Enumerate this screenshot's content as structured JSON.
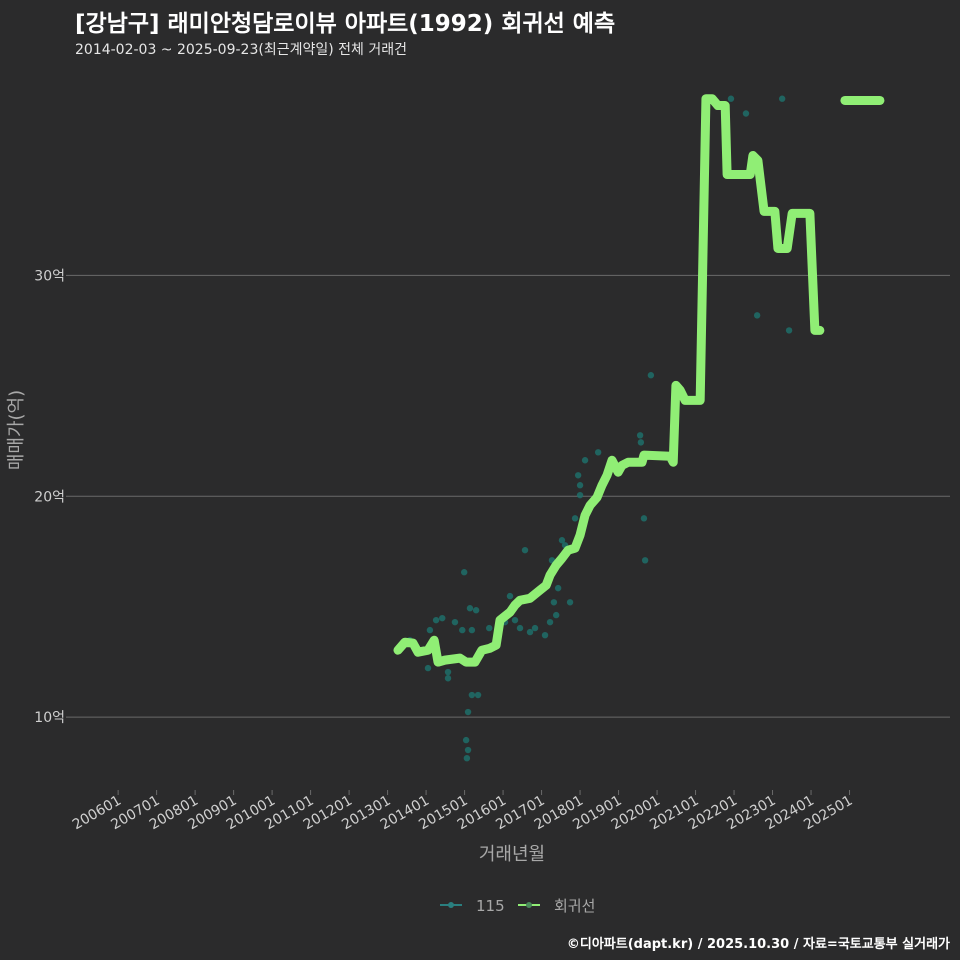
{
  "title": "[강남구] 래미안청담로이뷰 아파트(1992) 회귀선 예측",
  "subtitle": "2014-02-03 ~ 2025-09-23(최근계약일) 전체 거래건",
  "footer": "©디아파트(dapt.kr) / 2025.10.30 / 자료=국토교통부 실거래가",
  "chart_data": {
    "type": "scatter+line",
    "xlabel": "거래년월",
    "ylabel": "매매가(억)",
    "xlim": [
      2004.75,
      2027.61
    ],
    "ylim": [
      6.7,
      39.3
    ],
    "x_ticks": [
      {
        "v": 2006,
        "label": "200601"
      },
      {
        "v": 2007,
        "label": "200701"
      },
      {
        "v": 2008,
        "label": "200801"
      },
      {
        "v": 2009,
        "label": "200901"
      },
      {
        "v": 2010,
        "label": "201001"
      },
      {
        "v": 2011,
        "label": "201101"
      },
      {
        "v": 2012,
        "label": "201201"
      },
      {
        "v": 2013,
        "label": "201301"
      },
      {
        "v": 2014,
        "label": "201401"
      },
      {
        "v": 2015,
        "label": "201501"
      },
      {
        "v": 2016,
        "label": "201601"
      },
      {
        "v": 2017,
        "label": "201701"
      },
      {
        "v": 2018,
        "label": "201801"
      },
      {
        "v": 2019,
        "label": "201901"
      },
      {
        "v": 2020,
        "label": "202001"
      },
      {
        "v": 2021,
        "label": "202101"
      },
      {
        "v": 2022,
        "label": "202201"
      },
      {
        "v": 2023,
        "label": "202301"
      },
      {
        "v": 2024,
        "label": "202401"
      },
      {
        "v": 2025,
        "label": "202501"
      }
    ],
    "y_ticks": [
      {
        "v": 10,
        "label": "10억"
      },
      {
        "v": 20,
        "label": "20억"
      },
      {
        "v": 30,
        "label": "30억"
      }
    ],
    "legend": {
      "position": "bottom",
      "items": [
        {
          "label": "115",
          "color": "#2a7f7f"
        },
        {
          "label": "회귀선",
          "color": "#90ee75"
        }
      ]
    },
    "colors": {
      "scatter": "#1f6f6a",
      "line": "#90ee75",
      "grid": "#6a6a6a",
      "text": "#cfcfcf"
    },
    "scatter": [
      [
        2013.32,
        13.12
      ],
      [
        2013.58,
        13.48
      ],
      [
        2014.05,
        12.22
      ],
      [
        2014.1,
        13.94
      ],
      [
        2014.26,
        14.39
      ],
      [
        2014.42,
        14.48
      ],
      [
        2014.57,
        12.04
      ],
      [
        2014.57,
        11.76
      ],
      [
        2014.75,
        14.3
      ],
      [
        2014.94,
        13.94
      ],
      [
        2014.99,
        16.56
      ],
      [
        2015.04,
        8.96
      ],
      [
        2015.06,
        8.14
      ],
      [
        2015.09,
        8.51
      ],
      [
        2015.09,
        10.23
      ],
      [
        2015.14,
        14.93
      ],
      [
        2015.19,
        13.94
      ],
      [
        2015.19,
        11.0
      ],
      [
        2015.3,
        14.84
      ],
      [
        2015.35,
        11.0
      ],
      [
        2015.64,
        14.03
      ],
      [
        2016.05,
        14.3
      ],
      [
        2016.18,
        15.48
      ],
      [
        2016.31,
        14.39
      ],
      [
        2016.44,
        14.03
      ],
      [
        2016.57,
        17.56
      ],
      [
        2016.7,
        13.85
      ],
      [
        2016.83,
        14.03
      ],
      [
        2016.96,
        15.75
      ],
      [
        2017.09,
        13.71
      ],
      [
        2017.22,
        14.3
      ],
      [
        2017.27,
        17.1
      ],
      [
        2017.32,
        15.2
      ],
      [
        2017.38,
        14.62
      ],
      [
        2017.43,
        15.84
      ],
      [
        2017.53,
        18.01
      ],
      [
        2017.61,
        17.78
      ],
      [
        2017.74,
        15.2
      ],
      [
        2017.87,
        19.0
      ],
      [
        2017.95,
        20.95
      ],
      [
        2018.0,
        20.5
      ],
      [
        2018.0,
        20.05
      ],
      [
        2018.13,
        21.63
      ],
      [
        2018.47,
        21.99
      ],
      [
        2018.83,
        21.27
      ],
      [
        2019.56,
        22.76
      ],
      [
        2019.58,
        22.44
      ],
      [
        2019.66,
        19.0
      ],
      [
        2019.69,
        17.1
      ],
      [
        2019.84,
        25.48
      ],
      [
        2021.92,
        38.0
      ],
      [
        2022.31,
        37.33
      ],
      [
        2022.6,
        28.19
      ],
      [
        2023.25,
        38.0
      ],
      [
        2023.43,
        27.51
      ]
    ],
    "line_segments": [
      [
        [
          2013.27,
          13.03
        ],
        [
          2013.45,
          13.39
        ],
        [
          2013.66,
          13.35
        ],
        [
          2013.79,
          12.94
        ],
        [
          2014.05,
          13.03
        ],
        [
          2014.21,
          13.48
        ],
        [
          2014.31,
          12.49
        ],
        [
          2014.49,
          12.58
        ],
        [
          2014.88,
          12.67
        ],
        [
          2015.04,
          12.49
        ],
        [
          2015.27,
          12.49
        ],
        [
          2015.45,
          13.03
        ],
        [
          2015.66,
          13.12
        ],
        [
          2015.82,
          13.26
        ],
        [
          2015.92,
          14.39
        ],
        [
          2016.18,
          14.75
        ],
        [
          2016.31,
          15.07
        ],
        [
          2016.44,
          15.29
        ],
        [
          2016.7,
          15.38
        ],
        [
          2016.96,
          15.75
        ],
        [
          2017.12,
          15.97
        ],
        [
          2017.22,
          16.43
        ],
        [
          2017.38,
          16.88
        ],
        [
          2017.53,
          17.19
        ],
        [
          2017.69,
          17.56
        ],
        [
          2017.87,
          17.65
        ],
        [
          2018.0,
          18.24
        ],
        [
          2018.13,
          19.14
        ],
        [
          2018.26,
          19.59
        ],
        [
          2018.44,
          19.95
        ],
        [
          2018.57,
          20.5
        ],
        [
          2018.7,
          20.95
        ],
        [
          2018.83,
          21.63
        ],
        [
          2018.99,
          21.09
        ],
        [
          2019.09,
          21.4
        ],
        [
          2019.25,
          21.54
        ],
        [
          2019.61,
          21.54
        ],
        [
          2019.66,
          21.86
        ],
        [
          2020.34,
          21.81
        ],
        [
          2020.42,
          21.54
        ],
        [
          2020.49,
          25.02
        ],
        [
          2020.6,
          24.8
        ],
        [
          2020.73,
          24.34
        ],
        [
          2021.12,
          24.34
        ],
        [
          2021.27,
          38.0
        ],
        [
          2021.43,
          38.0
        ],
        [
          2021.58,
          37.69
        ],
        [
          2021.77,
          37.69
        ],
        [
          2021.82,
          34.57
        ],
        [
          2022.42,
          34.57
        ],
        [
          2022.49,
          35.43
        ],
        [
          2022.62,
          35.2
        ],
        [
          2022.78,
          32.9
        ],
        [
          2023.06,
          32.9
        ],
        [
          2023.14,
          31.22
        ],
        [
          2023.38,
          31.22
        ],
        [
          2023.51,
          32.81
        ],
        [
          2023.97,
          32.81
        ],
        [
          2024.1,
          27.51
        ],
        [
          2024.23,
          27.51
        ]
      ],
      [
        [
          2024.88,
          37.92
        ],
        [
          2025.79,
          37.92
        ]
      ]
    ]
  }
}
